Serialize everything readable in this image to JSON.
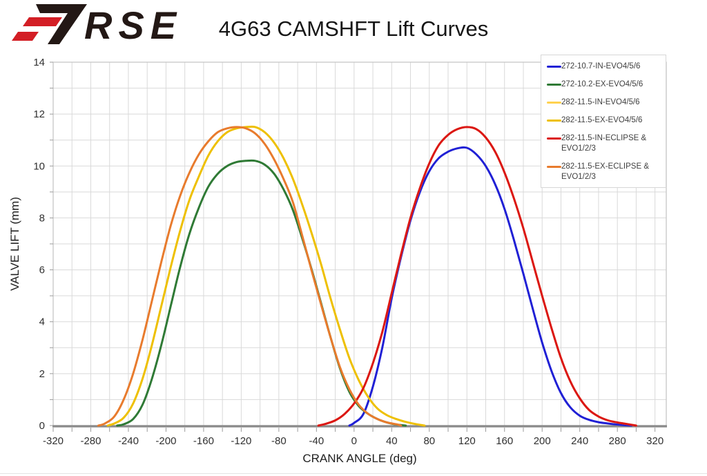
{
  "header": {
    "logo_text": "RSE",
    "title": "4G63 CAMSHFT Lift Curves"
  },
  "colors": {
    "logo_red": "#d31e25",
    "logo_black": "#231815",
    "grid": "#d9d9d9",
    "plot_border": "#c6c6c6",
    "axis_line": "#8a8a8a",
    "tick": "#9a9a9a",
    "tick_label": "#303030",
    "axis_title": "#1f1f1f",
    "title_color": "#161616"
  },
  "chart_data": {
    "type": "line",
    "title": "4G63 CAMSHFT Lift Curves",
    "xlabel": "CRANK ANGLE (deg)",
    "ylabel": "VALVE LIFT (mm)",
    "xlim": [
      -320,
      320
    ],
    "ylim": [
      0,
      14
    ],
    "x_tick_labels": [
      -320,
      -280,
      -240,
      -200,
      -160,
      -120,
      -80,
      -40,
      0,
      40,
      80,
      120,
      160,
      200,
      240,
      280,
      320
    ],
    "y_tick_labels": [
      0,
      2,
      4,
      6,
      8,
      10,
      12,
      14
    ],
    "x_grid_step": 20,
    "y_grid_step": 1,
    "grid": true,
    "legend_position": "top-right",
    "series": [
      {
        "name": "272-10.7-IN-EVO4/5/6",
        "color": "#2020d5",
        "points": [
          [
            -5,
            0
          ],
          [
            0,
            0.1
          ],
          [
            10,
            0.45
          ],
          [
            20,
            1.5
          ],
          [
            30,
            3.0
          ],
          [
            40,
            4.9
          ],
          [
            50,
            6.5
          ],
          [
            60,
            7.9
          ],
          [
            70,
            9.0
          ],
          [
            80,
            9.8
          ],
          [
            90,
            10.3
          ],
          [
            100,
            10.55
          ],
          [
            110,
            10.68
          ],
          [
            120,
            10.7
          ],
          [
            130,
            10.45
          ],
          [
            140,
            10.0
          ],
          [
            150,
            9.3
          ],
          [
            160,
            8.35
          ],
          [
            170,
            7.15
          ],
          [
            180,
            5.85
          ],
          [
            190,
            4.5
          ],
          [
            200,
            3.2
          ],
          [
            210,
            2.1
          ],
          [
            220,
            1.25
          ],
          [
            230,
            0.7
          ],
          [
            240,
            0.38
          ],
          [
            250,
            0.22
          ],
          [
            260,
            0.13
          ],
          [
            270,
            0.08
          ],
          [
            280,
            0.04
          ],
          [
            290,
            0.01
          ],
          [
            295,
            0
          ]
        ]
      },
      {
        "name": "272-10.2-EX-EVO4/5/6",
        "color": "#2f7a35",
        "points": [
          [
            -252,
            0
          ],
          [
            -245,
            0.05
          ],
          [
            -235,
            0.25
          ],
          [
            -225,
            0.8
          ],
          [
            -215,
            1.8
          ],
          [
            -205,
            3.1
          ],
          [
            -195,
            4.6
          ],
          [
            -185,
            6.1
          ],
          [
            -175,
            7.4
          ],
          [
            -165,
            8.4
          ],
          [
            -155,
            9.2
          ],
          [
            -145,
            9.7
          ],
          [
            -135,
            10.0
          ],
          [
            -125,
            10.15
          ],
          [
            -115,
            10.2
          ],
          [
            -105,
            10.2
          ],
          [
            -95,
            10.05
          ],
          [
            -85,
            9.7
          ],
          [
            -75,
            9.1
          ],
          [
            -65,
            8.3
          ],
          [
            -55,
            7.2
          ],
          [
            -45,
            6.0
          ],
          [
            -35,
            4.7
          ],
          [
            -25,
            3.4
          ],
          [
            -15,
            2.2
          ],
          [
            -5,
            1.3
          ],
          [
            5,
            0.75
          ],
          [
            15,
            0.45
          ],
          [
            25,
            0.25
          ],
          [
            35,
            0.12
          ],
          [
            45,
            0.04
          ],
          [
            55,
            0
          ]
        ]
      },
      {
        "name": "282-11.5-IN-EVO4/5/6",
        "color": "#ffd24f",
        "points": [
          [
            -38,
            0
          ],
          [
            -30,
            0.07
          ],
          [
            -20,
            0.2
          ],
          [
            -10,
            0.45
          ],
          [
            0,
            0.85
          ],
          [
            10,
            1.45
          ],
          [
            20,
            2.4
          ],
          [
            30,
            3.6
          ],
          [
            40,
            5.1
          ],
          [
            50,
            6.6
          ],
          [
            60,
            8.0
          ],
          [
            70,
            9.15
          ],
          [
            80,
            10.1
          ],
          [
            90,
            10.8
          ],
          [
            100,
            11.2
          ],
          [
            110,
            11.42
          ],
          [
            120,
            11.5
          ],
          [
            130,
            11.42
          ],
          [
            140,
            11.1
          ],
          [
            150,
            10.55
          ],
          [
            160,
            9.75
          ],
          [
            170,
            8.75
          ],
          [
            180,
            7.6
          ],
          [
            190,
            6.3
          ],
          [
            200,
            5.0
          ],
          [
            210,
            3.75
          ],
          [
            220,
            2.6
          ],
          [
            230,
            1.7
          ],
          [
            240,
            1.05
          ],
          [
            250,
            0.6
          ],
          [
            260,
            0.35
          ],
          [
            270,
            0.2
          ],
          [
            280,
            0.12
          ],
          [
            290,
            0.06
          ],
          [
            300,
            0
          ]
        ]
      },
      {
        "name": "282-11.5-EX-EVO4/5/6",
        "color": "#eec000",
        "points": [
          [
            -262,
            0
          ],
          [
            -255,
            0.08
          ],
          [
            -245,
            0.3
          ],
          [
            -235,
            0.85
          ],
          [
            -225,
            1.8
          ],
          [
            -215,
            3.1
          ],
          [
            -205,
            4.6
          ],
          [
            -195,
            6.1
          ],
          [
            -185,
            7.5
          ],
          [
            -175,
            8.7
          ],
          [
            -165,
            9.6
          ],
          [
            -155,
            10.4
          ],
          [
            -145,
            10.95
          ],
          [
            -135,
            11.3
          ],
          [
            -125,
            11.45
          ],
          [
            -115,
            11.5
          ],
          [
            -105,
            11.5
          ],
          [
            -95,
            11.3
          ],
          [
            -85,
            10.9
          ],
          [
            -75,
            10.3
          ],
          [
            -65,
            9.5
          ],
          [
            -55,
            8.5
          ],
          [
            -45,
            7.4
          ],
          [
            -35,
            6.2
          ],
          [
            -25,
            4.9
          ],
          [
            -15,
            3.7
          ],
          [
            -5,
            2.6
          ],
          [
            5,
            1.75
          ],
          [
            15,
            1.1
          ],
          [
            25,
            0.65
          ],
          [
            35,
            0.4
          ],
          [
            45,
            0.25
          ],
          [
            55,
            0.14
          ],
          [
            65,
            0.06
          ],
          [
            75,
            0
          ]
        ]
      },
      {
        "name": "282-11.5-IN-ECLIPSE & EVO1/2/3",
        "color": "#db1616",
        "points": [
          [
            -38,
            0
          ],
          [
            -30,
            0.07
          ],
          [
            -20,
            0.2
          ],
          [
            -10,
            0.45
          ],
          [
            0,
            0.85
          ],
          [
            10,
            1.45
          ],
          [
            20,
            2.4
          ],
          [
            30,
            3.6
          ],
          [
            40,
            5.1
          ],
          [
            50,
            6.6
          ],
          [
            60,
            8.0
          ],
          [
            70,
            9.15
          ],
          [
            80,
            10.1
          ],
          [
            90,
            10.8
          ],
          [
            100,
            11.2
          ],
          [
            110,
            11.42
          ],
          [
            120,
            11.5
          ],
          [
            130,
            11.42
          ],
          [
            140,
            11.1
          ],
          [
            150,
            10.55
          ],
          [
            160,
            9.75
          ],
          [
            170,
            8.75
          ],
          [
            180,
            7.6
          ],
          [
            190,
            6.3
          ],
          [
            200,
            5.0
          ],
          [
            210,
            3.75
          ],
          [
            220,
            2.6
          ],
          [
            230,
            1.7
          ],
          [
            240,
            1.05
          ],
          [
            250,
            0.6
          ],
          [
            260,
            0.35
          ],
          [
            270,
            0.2
          ],
          [
            280,
            0.12
          ],
          [
            290,
            0.06
          ],
          [
            300,
            0
          ]
        ]
      },
      {
        "name": "282-11.5-EX-ECLIPSE & EVO1/2/3",
        "color": "#e87b2d",
        "points": [
          [
            -272,
            0
          ],
          [
            -265,
            0.08
          ],
          [
            -255,
            0.35
          ],
          [
            -245,
            1.0
          ],
          [
            -235,
            2.0
          ],
          [
            -225,
            3.3
          ],
          [
            -215,
            4.8
          ],
          [
            -205,
            6.3
          ],
          [
            -195,
            7.7
          ],
          [
            -185,
            8.85
          ],
          [
            -175,
            9.75
          ],
          [
            -165,
            10.45
          ],
          [
            -155,
            10.95
          ],
          [
            -145,
            11.3
          ],
          [
            -135,
            11.45
          ],
          [
            -125,
            11.5
          ],
          [
            -115,
            11.45
          ],
          [
            -105,
            11.25
          ],
          [
            -95,
            10.85
          ],
          [
            -85,
            10.25
          ],
          [
            -75,
            9.5
          ],
          [
            -65,
            8.6
          ],
          [
            -55,
            7.3
          ],
          [
            -45,
            5.95
          ],
          [
            -35,
            4.65
          ],
          [
            -25,
            3.4
          ],
          [
            -15,
            2.25
          ],
          [
            -5,
            1.4
          ],
          [
            5,
            0.8
          ],
          [
            15,
            0.45
          ],
          [
            25,
            0.25
          ],
          [
            35,
            0.12
          ],
          [
            45,
            0.05
          ],
          [
            50,
            0
          ]
        ]
      }
    ]
  }
}
